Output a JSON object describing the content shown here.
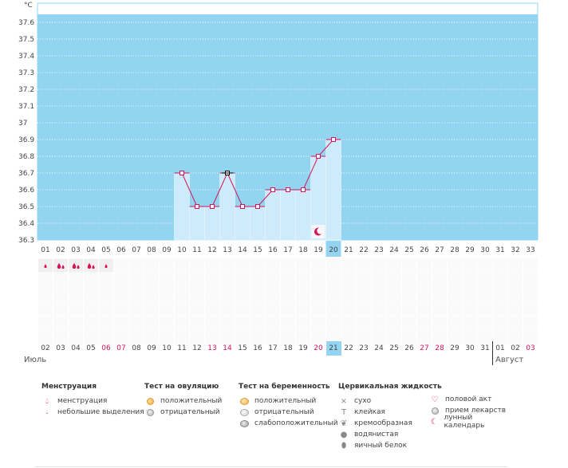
{
  "chart_data": {
    "type": "line",
    "y_unit": "°C",
    "ylim": [
      36.3,
      37.7
    ],
    "y_ticks": [
      "37.6",
      "37.5",
      "37.4",
      "37.3",
      "37.2",
      "37.1",
      "37",
      "36.9",
      "36.8",
      "36.7",
      "36.6",
      "36.5",
      "36.4",
      "36.3"
    ],
    "cycle_days": [
      "01",
      "02",
      "03",
      "04",
      "05",
      "06",
      "07",
      "08",
      "09",
      "10",
      "11",
      "12",
      "13",
      "14",
      "15",
      "16",
      "17",
      "18",
      "19",
      "20",
      "21",
      "22",
      "23",
      "24",
      "25",
      "26",
      "27",
      "28",
      "29",
      "30",
      "31",
      "32",
      "33"
    ],
    "current_cycle_day": "20",
    "series": [
      {
        "x": [
          "10",
          "11",
          "12",
          "13",
          "14",
          "15",
          "16",
          "17",
          "18",
          "19",
          "20"
        ],
        "values": [
          36.7,
          36.5,
          36.5,
          36.7,
          36.5,
          36.5,
          36.6,
          36.6,
          36.6,
          36.8,
          36.9
        ]
      }
    ],
    "highlighted_point_day": "13",
    "moon_marker_day": "19",
    "grid": true,
    "colors": {
      "plot_background": "#93d4f0",
      "bar_fill": "#cdebfa",
      "line": "#d4145a",
      "today": "#93d4f0"
    }
  },
  "menstruation_days": [
    {
      "day": "01",
      "type": "small"
    },
    {
      "day": "02",
      "type": "heavy"
    },
    {
      "day": "03",
      "type": "heavy"
    },
    {
      "day": "04",
      "type": "heavy"
    },
    {
      "day": "05",
      "type": "small"
    }
  ],
  "calendar": {
    "dates": [
      "02",
      "03",
      "04",
      "05",
      "06",
      "07",
      "08",
      "09",
      "10",
      "11",
      "12",
      "13",
      "14",
      "15",
      "16",
      "17",
      "18",
      "19",
      "20",
      "21",
      "22",
      "23",
      "24",
      "25",
      "26",
      "27",
      "28",
      "29",
      "30",
      "31",
      "01",
      "02",
      "03"
    ],
    "weekend_indices": [
      4,
      5,
      11,
      12,
      18,
      25,
      26,
      32
    ],
    "today_index": 19,
    "months": [
      {
        "label": "Июль"
      },
      {
        "label": "Август"
      }
    ]
  },
  "legend": {
    "menstruation": {
      "title": "Менструация",
      "items": [
        {
          "icon": "blood-drop-icon",
          "label": "менструация"
        },
        {
          "icon": "small-drop-icon",
          "label": "небольшие выделения"
        }
      ]
    },
    "ovulation_test": {
      "title": "Тест на овуляцию",
      "items": [
        {
          "icon": "positive-test-icon",
          "label": "положительный"
        },
        {
          "icon": "negative-test-icon",
          "label": "отрицательный"
        }
      ]
    },
    "pregnancy_test": {
      "title": "Тест на беременность",
      "items": [
        {
          "icon": "pregnancy-positive-icon",
          "label": "положительный"
        },
        {
          "icon": "pregnancy-negative-icon",
          "label": "отрицательный"
        },
        {
          "icon": "pregnancy-weak-icon",
          "label": "слабоположительный"
        }
      ]
    },
    "cervical_fluid": {
      "title": "Цервикальная жидкость",
      "items": [
        {
          "icon": "dry-icon",
          "label": "сухо"
        },
        {
          "icon": "sticky-icon",
          "label": "клейкая"
        },
        {
          "icon": "creamy-icon",
          "label": "кремообразная"
        },
        {
          "icon": "watery-icon",
          "label": "водянистая"
        },
        {
          "icon": "egg-white-icon",
          "label": "яичный белок"
        }
      ]
    },
    "other": {
      "items": [
        {
          "icon": "heart-icon",
          "label": "половой акт"
        },
        {
          "icon": "pill-icon",
          "label": "прием лекарств"
        },
        {
          "icon": "moon-icon",
          "label": "лунный календарь"
        }
      ]
    }
  }
}
